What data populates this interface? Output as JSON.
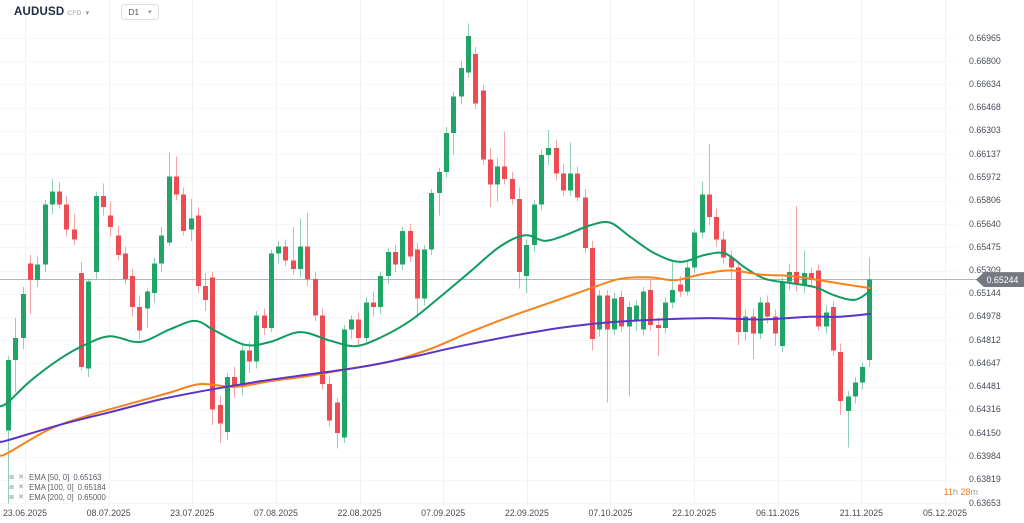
{
  "header": {
    "symbol": "AUDUSD",
    "instrument_type": "CFD",
    "timeframe": "D1",
    "symbol_caret": "▾",
    "timeframe_caret": "▾"
  },
  "indicators": {
    "settings_icon": "≣",
    "remove_icon": "✕",
    "rows": [
      {
        "label": "EMA [50, 0]",
        "value": "0.65163"
      },
      {
        "label": "EMA [100, 0]",
        "value": "0.65184"
      },
      {
        "label": "EMA [200, 0]",
        "value": "0.65000"
      }
    ]
  },
  "chart_data": {
    "type": "candlestick",
    "symbol": "AUDUSD",
    "timeframe": "D1",
    "current_price": "0.65244",
    "countdown": {
      "hours": "11",
      "hours_unit": "h",
      "minutes": "28",
      "minutes_unit": "m"
    },
    "colors": {
      "up": "#21A467",
      "down": "#EE4B52",
      "ema50": "#109B61",
      "ema100": "#F8821C",
      "ema200": "#5C33C9",
      "grid_v": "#f1f2f5",
      "grid_h": "#f6f7f9",
      "price_line": "#b2b5bc",
      "price_tag_bg": "#747981",
      "axis_text": "#474d57",
      "countdown_accent": "#f7821b"
    },
    "price_axis_labels": [
      "0.66965",
      "0.66800",
      "0.66634",
      "0.66468",
      "0.66303",
      "0.66137",
      "0.65972",
      "0.65806",
      "0.65640",
      "0.65475",
      "0.65309",
      "0.65144",
      "0.64978",
      "0.64812",
      "0.64647",
      "0.64481",
      "0.64316",
      "0.64150",
      "0.63984",
      "0.63819",
      "0.63653"
    ],
    "time_axis_labels": [
      "23.06.2025",
      "08.07.2025",
      "23.07.2025",
      "07.08.2025",
      "22.08.2025",
      "07.09.2025",
      "22.09.2025",
      "07.10.2025",
      "22.10.2025",
      "06.11.2025",
      "21.11.2025",
      "05.12.2025"
    ],
    "ohlc_order": "open,high,low,close",
    "candles": [
      [
        0.6417,
        0.647,
        0.6365,
        0.6467
      ],
      [
        0.6467,
        0.6497,
        0.6444,
        0.6483
      ],
      [
        0.6483,
        0.6519,
        0.6475,
        0.6514
      ],
      [
        0.6536,
        0.6542,
        0.65,
        0.6524
      ],
      [
        0.6524,
        0.6541,
        0.6519,
        0.6535
      ],
      [
        0.6535,
        0.6581,
        0.653,
        0.6578
      ],
      [
        0.6578,
        0.6596,
        0.6571,
        0.6587
      ],
      [
        0.6587,
        0.6594,
        0.6575,
        0.6578
      ],
      [
        0.6578,
        0.6584,
        0.6555,
        0.656
      ],
      [
        0.656,
        0.6571,
        0.6549,
        0.6553
      ],
      [
        0.6529,
        0.6537,
        0.646,
        0.6462
      ],
      [
        0.6461,
        0.6525,
        0.6455,
        0.6523
      ],
      [
        0.653,
        0.6587,
        0.6525,
        0.6584
      ],
      [
        0.6584,
        0.6593,
        0.657,
        0.6576
      ],
      [
        0.657,
        0.658,
        0.6555,
        0.6562
      ],
      [
        0.6556,
        0.6563,
        0.6538,
        0.6542
      ],
      [
        0.6543,
        0.6548,
        0.6521,
        0.6525
      ],
      [
        0.6527,
        0.6532,
        0.6498,
        0.6505
      ],
      [
        0.6505,
        0.6513,
        0.6482,
        0.6488
      ],
      [
        0.6504,
        0.6518,
        0.649,
        0.6516
      ],
      [
        0.6515,
        0.654,
        0.6508,
        0.6536
      ],
      [
        0.6536,
        0.6562,
        0.653,
        0.6556
      ],
      [
        0.6551,
        0.6615,
        0.6548,
        0.6598
      ],
      [
        0.6598,
        0.6612,
        0.6581,
        0.6585
      ],
      [
        0.6585,
        0.659,
        0.6556,
        0.6559
      ],
      [
        0.656,
        0.6582,
        0.6552,
        0.6568
      ],
      [
        0.657,
        0.6576,
        0.6515,
        0.652
      ],
      [
        0.652,
        0.6529,
        0.6502,
        0.651
      ],
      [
        0.6526,
        0.653,
        0.6421,
        0.6432
      ],
      [
        0.6435,
        0.6442,
        0.6408,
        0.6422
      ],
      [
        0.6416,
        0.6458,
        0.641,
        0.6455
      ],
      [
        0.6455,
        0.6462,
        0.644,
        0.6448
      ],
      [
        0.6448,
        0.6478,
        0.6442,
        0.6474
      ],
      [
        0.6474,
        0.648,
        0.6458,
        0.6466
      ],
      [
        0.6466,
        0.6502,
        0.6461,
        0.6499
      ],
      [
        0.6499,
        0.6504,
        0.6485,
        0.649
      ],
      [
        0.649,
        0.6546,
        0.6487,
        0.6543
      ],
      [
        0.6543,
        0.6552,
        0.6536,
        0.6548
      ],
      [
        0.6548,
        0.6553,
        0.6534,
        0.6538
      ],
      [
        0.6538,
        0.6562,
        0.6528,
        0.6532
      ],
      [
        0.6532,
        0.6568,
        0.6526,
        0.6548
      ],
      [
        0.6548,
        0.6572,
        0.652,
        0.6525
      ],
      [
        0.6525,
        0.653,
        0.6495,
        0.6499
      ],
      [
        0.6499,
        0.6504,
        0.6446,
        0.645
      ],
      [
        0.645,
        0.6456,
        0.642,
        0.6424
      ],
      [
        0.6437,
        0.644,
        0.6404,
        0.6415
      ],
      [
        0.6412,
        0.6492,
        0.6408,
        0.6489
      ],
      [
        0.6489,
        0.6499,
        0.6482,
        0.6496
      ],
      [
        0.6496,
        0.6501,
        0.6478,
        0.6483
      ],
      [
        0.6483,
        0.6512,
        0.6479,
        0.6508
      ],
      [
        0.6508,
        0.6516,
        0.6498,
        0.6505
      ],
      [
        0.6505,
        0.653,
        0.65,
        0.6527
      ],
      [
        0.6527,
        0.6547,
        0.6521,
        0.6544
      ],
      [
        0.6544,
        0.6549,
        0.653,
        0.6535
      ],
      [
        0.6535,
        0.6562,
        0.6531,
        0.6559
      ],
      [
        0.6559,
        0.6564,
        0.6537,
        0.6541
      ],
      [
        0.6546,
        0.6551,
        0.6497,
        0.6511
      ],
      [
        0.6511,
        0.6549,
        0.6506,
        0.6546
      ],
      [
        0.6546,
        0.6589,
        0.6542,
        0.6586
      ],
      [
        0.6586,
        0.6604,
        0.657,
        0.6601
      ],
      [
        0.6601,
        0.6633,
        0.6597,
        0.6629
      ],
      [
        0.6629,
        0.6658,
        0.6613,
        0.6655
      ],
      [
        0.6655,
        0.668,
        0.6649,
        0.6675
      ],
      [
        0.6672,
        0.6707,
        0.6668,
        0.6698
      ],
      [
        0.6685,
        0.669,
        0.6646,
        0.665
      ],
      [
        0.6659,
        0.6663,
        0.6606,
        0.661
      ],
      [
        0.661,
        0.6618,
        0.6576,
        0.6592
      ],
      [
        0.6592,
        0.6611,
        0.658,
        0.6605
      ],
      [
        0.6605,
        0.663,
        0.6592,
        0.6596
      ],
      [
        0.6596,
        0.6601,
        0.6578,
        0.6582
      ],
      [
        0.6582,
        0.659,
        0.6518,
        0.653
      ],
      [
        0.6527,
        0.6553,
        0.6515,
        0.6549
      ],
      [
        0.6549,
        0.6581,
        0.6544,
        0.6578
      ],
      [
        0.6578,
        0.6617,
        0.6574,
        0.6613
      ],
      [
        0.6613,
        0.6631,
        0.6606,
        0.6618
      ],
      [
        0.6618,
        0.6624,
        0.6595,
        0.66
      ],
      [
        0.66,
        0.6607,
        0.6584,
        0.6588
      ],
      [
        0.6588,
        0.6622,
        0.6584,
        0.66
      ],
      [
        0.66,
        0.6605,
        0.658,
        0.6583
      ],
      [
        0.6583,
        0.6589,
        0.6543,
        0.6547
      ],
      [
        0.6547,
        0.6552,
        0.6474,
        0.6482
      ],
      [
        0.6489,
        0.6517,
        0.6484,
        0.6513
      ],
      [
        0.6513,
        0.6517,
        0.6437,
        0.6489
      ],
      [
        0.6489,
        0.6515,
        0.6485,
        0.6511
      ],
      [
        0.6512,
        0.6517,
        0.6487,
        0.6491
      ],
      [
        0.6491,
        0.6509,
        0.6441,
        0.6505
      ],
      [
        0.6495,
        0.651,
        0.6488,
        0.6506
      ],
      [
        0.6489,
        0.6519,
        0.6485,
        0.6516
      ],
      [
        0.6517,
        0.6524,
        0.6488,
        0.6492
      ],
      [
        0.6492,
        0.6497,
        0.647,
        0.649
      ],
      [
        0.649,
        0.6512,
        0.6486,
        0.6508
      ],
      [
        0.6508,
        0.6537,
        0.6504,
        0.6517
      ],
      [
        0.6521,
        0.6527,
        0.6512,
        0.6516
      ],
      [
        0.6516,
        0.6538,
        0.6513,
        0.6533
      ],
      [
        0.6533,
        0.656,
        0.6529,
        0.6558
      ],
      [
        0.6558,
        0.6594,
        0.6554,
        0.6585
      ],
      [
        0.6585,
        0.6621,
        0.6563,
        0.6569
      ],
      [
        0.6569,
        0.6575,
        0.6548,
        0.6553
      ],
      [
        0.6553,
        0.6559,
        0.6536,
        0.654
      ],
      [
        0.654,
        0.6545,
        0.6525,
        0.6533
      ],
      [
        0.6533,
        0.6537,
        0.6478,
        0.6487
      ],
      [
        0.6487,
        0.6503,
        0.6481,
        0.6498
      ],
      [
        0.6498,
        0.6504,
        0.6468,
        0.6486
      ],
      [
        0.6486,
        0.6512,
        0.6482,
        0.6508
      ],
      [
        0.6508,
        0.6513,
        0.6493,
        0.6498
      ],
      [
        0.6498,
        0.6503,
        0.6477,
        0.6486
      ],
      [
        0.6477,
        0.6526,
        0.6473,
        0.6523
      ],
      [
        0.6523,
        0.6536,
        0.6517,
        0.653
      ],
      [
        0.653,
        0.6577,
        0.6516,
        0.6521
      ],
      [
        0.6521,
        0.6545,
        0.6515,
        0.6529
      ],
      [
        0.6529,
        0.6533,
        0.6519,
        0.6524
      ],
      [
        0.6531,
        0.6535,
        0.6488,
        0.6491
      ],
      [
        0.6491,
        0.6506,
        0.6486,
        0.6501
      ],
      [
        0.6505,
        0.6509,
        0.647,
        0.6474
      ],
      [
        0.6473,
        0.6479,
        0.6428,
        0.6438
      ],
      [
        0.6431,
        0.6445,
        0.6405,
        0.6441
      ],
      [
        0.6441,
        0.6455,
        0.6436,
        0.6451
      ],
      [
        0.6451,
        0.6465,
        0.6446,
        0.6462
      ],
      [
        0.6467,
        0.654,
        0.6462,
        0.65244
      ]
    ],
    "emas": [
      {
        "period": 50,
        "value": 0.65163,
        "points": [
          [
            0,
            0.6434
          ],
          [
            8,
            0.6437
          ],
          [
            30,
            0.6452
          ],
          [
            60,
            0.6468
          ],
          [
            85,
            0.6478
          ],
          [
            110,
            0.6484
          ],
          [
            140,
            0.648
          ],
          [
            170,
            0.6489
          ],
          [
            195,
            0.6495
          ],
          [
            215,
            0.6488
          ],
          [
            245,
            0.6478
          ],
          [
            270,
            0.648
          ],
          [
            300,
            0.6487
          ],
          [
            330,
            0.6481
          ],
          [
            355,
            0.6477
          ],
          [
            380,
            0.6483
          ],
          [
            410,
            0.6495
          ],
          [
            440,
            0.6512
          ],
          [
            470,
            0.653
          ],
          [
            500,
            0.6548
          ],
          [
            525,
            0.6556
          ],
          [
            545,
            0.6552
          ],
          [
            565,
            0.6556
          ],
          [
            590,
            0.6563
          ],
          [
            610,
            0.6565
          ],
          [
            630,
            0.6555
          ],
          [
            655,
            0.6543
          ],
          [
            680,
            0.6537
          ],
          [
            705,
            0.6542
          ],
          [
            725,
            0.6543
          ],
          [
            745,
            0.6533
          ],
          [
            765,
            0.6525
          ],
          [
            790,
            0.6522
          ],
          [
            815,
            0.6519
          ],
          [
            835,
            0.6513
          ],
          [
            855,
            0.651
          ],
          [
            870,
            0.65163
          ]
        ]
      },
      {
        "period": 100,
        "value": 0.65184,
        "points": [
          [
            0,
            0.6399
          ],
          [
            8,
            0.6401
          ],
          [
            50,
            0.6418
          ],
          [
            90,
            0.6428
          ],
          [
            130,
            0.6436
          ],
          [
            170,
            0.6444
          ],
          [
            200,
            0.645
          ],
          [
            235,
            0.6448
          ],
          [
            270,
            0.6452
          ],
          [
            310,
            0.6456
          ],
          [
            350,
            0.6461
          ],
          [
            390,
            0.6466
          ],
          [
            430,
            0.6475
          ],
          [
            470,
            0.6487
          ],
          [
            510,
            0.6498
          ],
          [
            550,
            0.6508
          ],
          [
            590,
            0.6518
          ],
          [
            620,
            0.6525
          ],
          [
            650,
            0.6526
          ],
          [
            675,
            0.6524
          ],
          [
            700,
            0.6528
          ],
          [
            730,
            0.6531
          ],
          [
            760,
            0.6528
          ],
          [
            790,
            0.6527
          ],
          [
            820,
            0.6524
          ],
          [
            845,
            0.6521
          ],
          [
            870,
            0.65184
          ]
        ]
      },
      {
        "period": 200,
        "value": 0.65,
        "points": [
          [
            0,
            0.6409
          ],
          [
            8,
            0.641
          ],
          [
            60,
            0.6421
          ],
          [
            110,
            0.643
          ],
          [
            160,
            0.6439
          ],
          [
            210,
            0.6446
          ],
          [
            260,
            0.6452
          ],
          [
            310,
            0.6457
          ],
          [
            360,
            0.6462
          ],
          [
            410,
            0.6469
          ],
          [
            460,
            0.6477
          ],
          [
            510,
            0.6484
          ],
          [
            560,
            0.649
          ],
          [
            610,
            0.6494
          ],
          [
            660,
            0.6496
          ],
          [
            710,
            0.6497
          ],
          [
            760,
            0.6496
          ],
          [
            810,
            0.6498
          ],
          [
            840,
            0.6498
          ],
          [
            870,
            0.65
          ]
        ]
      }
    ]
  }
}
